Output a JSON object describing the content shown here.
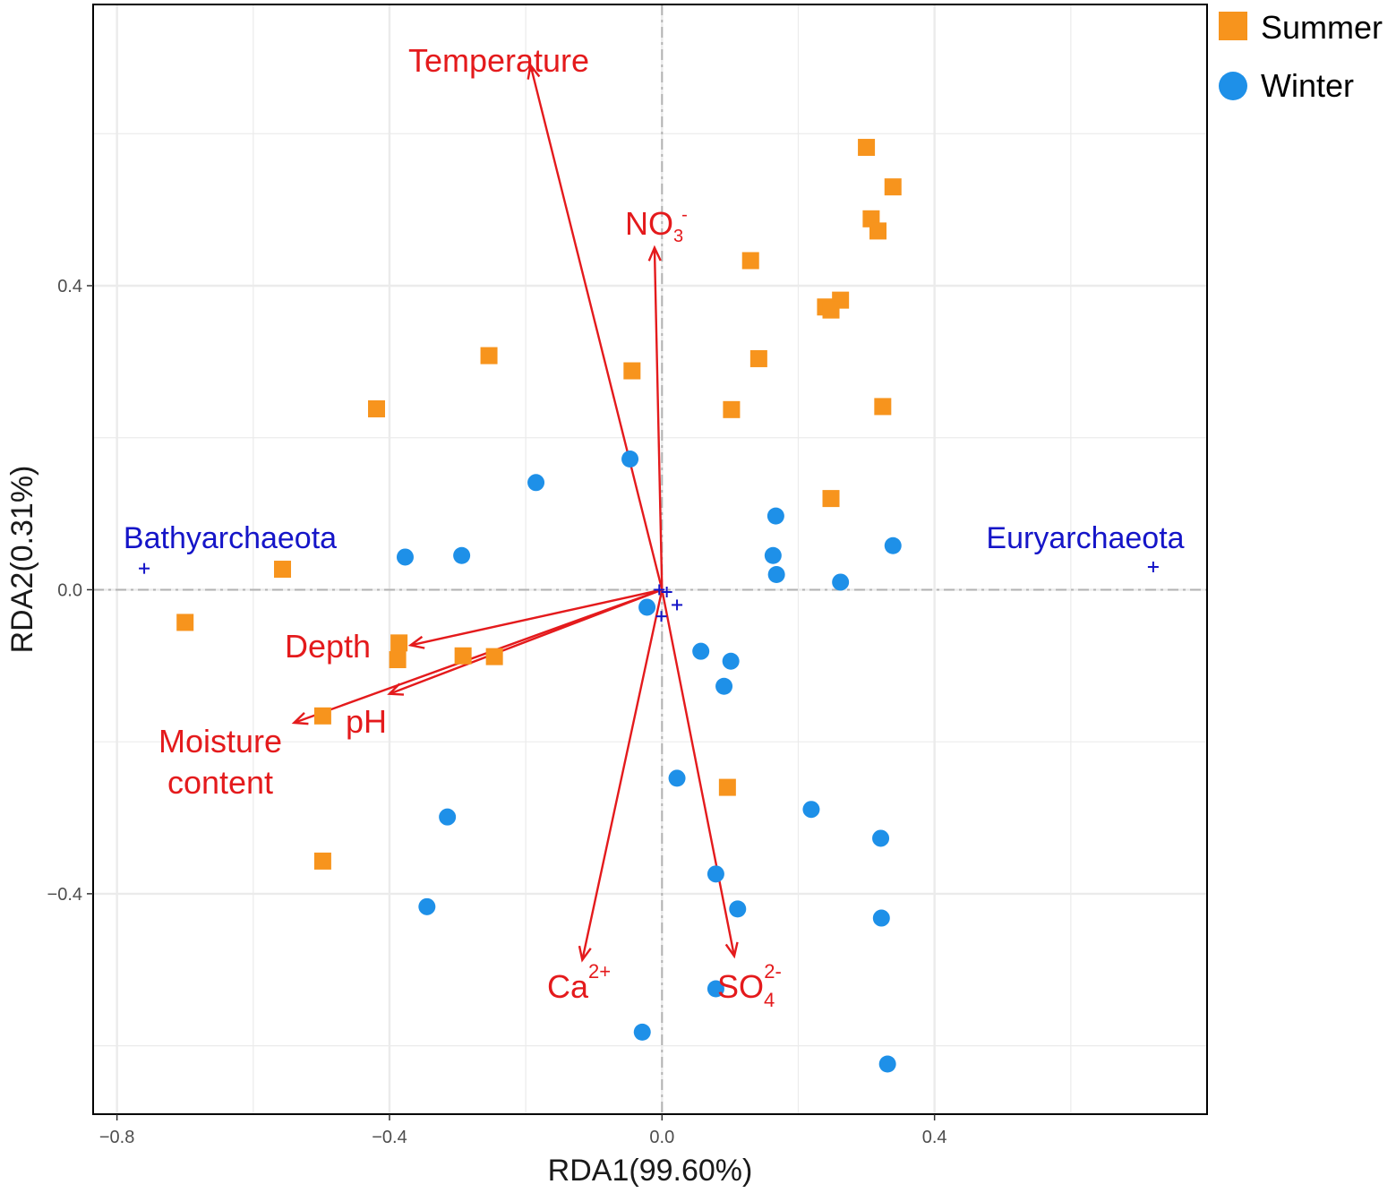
{
  "colors": {
    "summer": "#f7941d",
    "winter": "#1e90e8",
    "arrow": "#e41a1c",
    "taxon": "#1515c8",
    "zero_line": "#b3b3b3",
    "grid": "#ebebeb"
  },
  "chart_data": {
    "type": "scatter",
    "title": "",
    "xlabel": "RDA1(99.60%)",
    "ylabel": "RDA2(0.31%)",
    "xlim": [
      -0.835,
      0.8
    ],
    "ylim": [
      -0.69,
      0.77
    ],
    "x_ticks": [
      -0.8,
      -0.4,
      0.0,
      0.4
    ],
    "x_tick_labels": [
      "−0.8",
      "−0.4",
      "0.0",
      "0.4"
    ],
    "y_ticks": [
      -0.4,
      0.0,
      0.4
    ],
    "y_tick_labels": [
      "−0.4",
      "0.0",
      "0.4"
    ],
    "x_minor": [
      -0.6,
      -0.2,
      0.2,
      0.6
    ],
    "y_minor": [
      -0.6,
      -0.2,
      0.2,
      0.6
    ],
    "grid": true,
    "legend": {
      "position": "right-top",
      "entries": [
        {
          "name": "Summer",
          "shape": "square"
        },
        {
          "name": "Winter",
          "shape": "circle"
        }
      ]
    },
    "series": [
      {
        "name": "Summer",
        "shape": "square",
        "points": [
          {
            "x": 0.3,
            "y": 0.582
          },
          {
            "x": 0.339,
            "y": 0.53
          },
          {
            "x": 0.307,
            "y": 0.488
          },
          {
            "x": 0.317,
            "y": 0.472
          },
          {
            "x": 0.13,
            "y": 0.433
          },
          {
            "x": 0.262,
            "y": 0.381
          },
          {
            "x": 0.24,
            "y": 0.372
          },
          {
            "x": 0.248,
            "y": 0.368
          },
          {
            "x": -0.254,
            "y": 0.308
          },
          {
            "x": -0.044,
            "y": 0.288
          },
          {
            "x": 0.142,
            "y": 0.304
          },
          {
            "x": -0.419,
            "y": 0.238
          },
          {
            "x": 0.102,
            "y": 0.237
          },
          {
            "x": 0.324,
            "y": 0.241
          },
          {
            "x": 0.248,
            "y": 0.12
          },
          {
            "x": -0.557,
            "y": 0.027
          },
          {
            "x": -0.7,
            "y": -0.043
          },
          {
            "x": -0.386,
            "y": -0.07
          },
          {
            "x": -0.388,
            "y": -0.092
          },
          {
            "x": -0.292,
            "y": -0.087
          },
          {
            "x": -0.246,
            "y": -0.088
          },
          {
            "x": -0.498,
            "y": -0.166
          },
          {
            "x": 0.096,
            "y": -0.26
          },
          {
            "x": -0.498,
            "y": -0.357
          }
        ]
      },
      {
        "name": "Winter",
        "shape": "circle",
        "points": [
          {
            "x": -0.047,
            "y": 0.172
          },
          {
            "x": -0.185,
            "y": 0.141
          },
          {
            "x": 0.167,
            "y": 0.097
          },
          {
            "x": 0.339,
            "y": 0.058
          },
          {
            "x": -0.377,
            "y": 0.043
          },
          {
            "x": -0.294,
            "y": 0.045
          },
          {
            "x": 0.163,
            "y": 0.045
          },
          {
            "x": 0.168,
            "y": 0.02
          },
          {
            "x": 0.262,
            "y": 0.01
          },
          {
            "x": -0.022,
            "y": -0.023
          },
          {
            "x": 0.057,
            "y": -0.081
          },
          {
            "x": 0.101,
            "y": -0.094
          },
          {
            "x": 0.091,
            "y": -0.127
          },
          {
            "x": 0.022,
            "y": -0.248
          },
          {
            "x": 0.219,
            "y": -0.289
          },
          {
            "x": -0.315,
            "y": -0.299
          },
          {
            "x": 0.321,
            "y": -0.327
          },
          {
            "x": 0.079,
            "y": -0.374
          },
          {
            "x": -0.345,
            "y": -0.417
          },
          {
            "x": 0.111,
            "y": -0.42
          },
          {
            "x": 0.322,
            "y": -0.432
          },
          {
            "x": 0.079,
            "y": -0.525
          },
          {
            "x": -0.029,
            "y": -0.582
          },
          {
            "x": 0.331,
            "y": -0.624
          }
        ]
      }
    ],
    "env_arrows": [
      {
        "name": "Temperature",
        "x": -0.193,
        "y": 0.69
      },
      {
        "name": "NO3-",
        "x": -0.011,
        "y": 0.45
      },
      {
        "name": "Depth",
        "x": -0.369,
        "y": -0.073
      },
      {
        "name": "pH",
        "x": -0.4,
        "y": -0.137
      },
      {
        "name": "Moisture content",
        "x": -0.54,
        "y": -0.175
      },
      {
        "name": "Ca2+",
        "x": -0.117,
        "y": -0.487
      },
      {
        "name": "SO42-",
        "x": 0.106,
        "y": -0.482
      }
    ],
    "env_labels": {
      "temperature": "Temperature",
      "no3_base": "NO",
      "no3_sub": "3",
      "no3_sup": "-",
      "depth": "Depth",
      "ph": "pH",
      "moisture_line1": "Moisture",
      "moisture_line2": "content",
      "ca_base": "Ca",
      "ca_sup": "2+",
      "so4_base": "SO",
      "so4_sub": "4",
      "so4_sup": "2-"
    },
    "taxa": [
      {
        "name": "Bathyarchaeota",
        "x": -0.76,
        "y": 0.028
      },
      {
        "name": "Euryarchaeota",
        "x": 0.721,
        "y": 0.03
      },
      {
        "name": "",
        "x": -0.004,
        "y": 0.0
      },
      {
        "name": "",
        "x": 0.007,
        "y": -0.003
      },
      {
        "name": "",
        "x": 0.022,
        "y": -0.02
      },
      {
        "name": "",
        "x": -0.001,
        "y": -0.035
      }
    ]
  }
}
